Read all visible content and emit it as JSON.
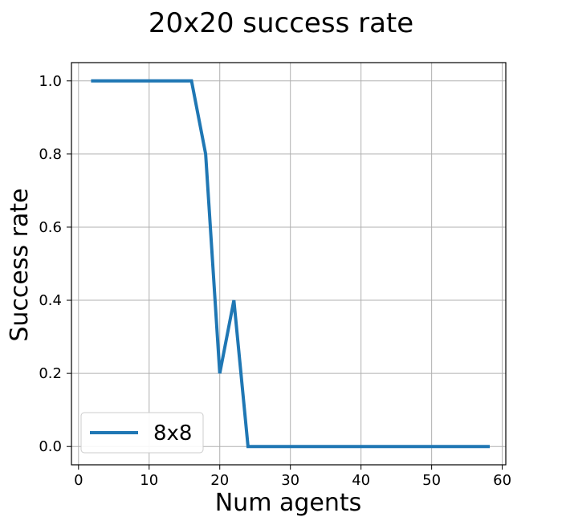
{
  "chart_data": {
    "type": "line",
    "title": "20x20 success rate",
    "xlabel": "Num agents",
    "ylabel": "Success rate",
    "xlim": [
      -1,
      60.5
    ],
    "ylim": [
      -0.05,
      1.05
    ],
    "xticks": [
      0,
      10,
      20,
      30,
      40,
      50,
      60
    ],
    "yticks": [
      0.0,
      0.2,
      0.4,
      0.6,
      0.8,
      1.0
    ],
    "xtick_labels": [
      "0",
      "10",
      "20",
      "30",
      "40",
      "50",
      "60"
    ],
    "ytick_labels": [
      "0.0",
      "0.2",
      "0.4",
      "0.6",
      "0.8",
      "1.0"
    ],
    "grid": true,
    "legend_position": "lower-left",
    "series": [
      {
        "name": "8x8",
        "color": "#1f77b4",
        "x": [
          2,
          4,
          6,
          8,
          10,
          12,
          14,
          16,
          18,
          20,
          22,
          24,
          26,
          28,
          30,
          32,
          34,
          36,
          38,
          40,
          42,
          44,
          46,
          48,
          50,
          52,
          54,
          56,
          58
        ],
        "y": [
          1.0,
          1.0,
          1.0,
          1.0,
          1.0,
          1.0,
          1.0,
          1.0,
          0.8,
          0.2,
          0.4,
          0.0,
          0.0,
          0.0,
          0.0,
          0.0,
          0.0,
          0.0,
          0.0,
          0.0,
          0.0,
          0.0,
          0.0,
          0.0,
          0.0,
          0.0,
          0.0,
          0.0,
          0.0
        ]
      }
    ]
  }
}
